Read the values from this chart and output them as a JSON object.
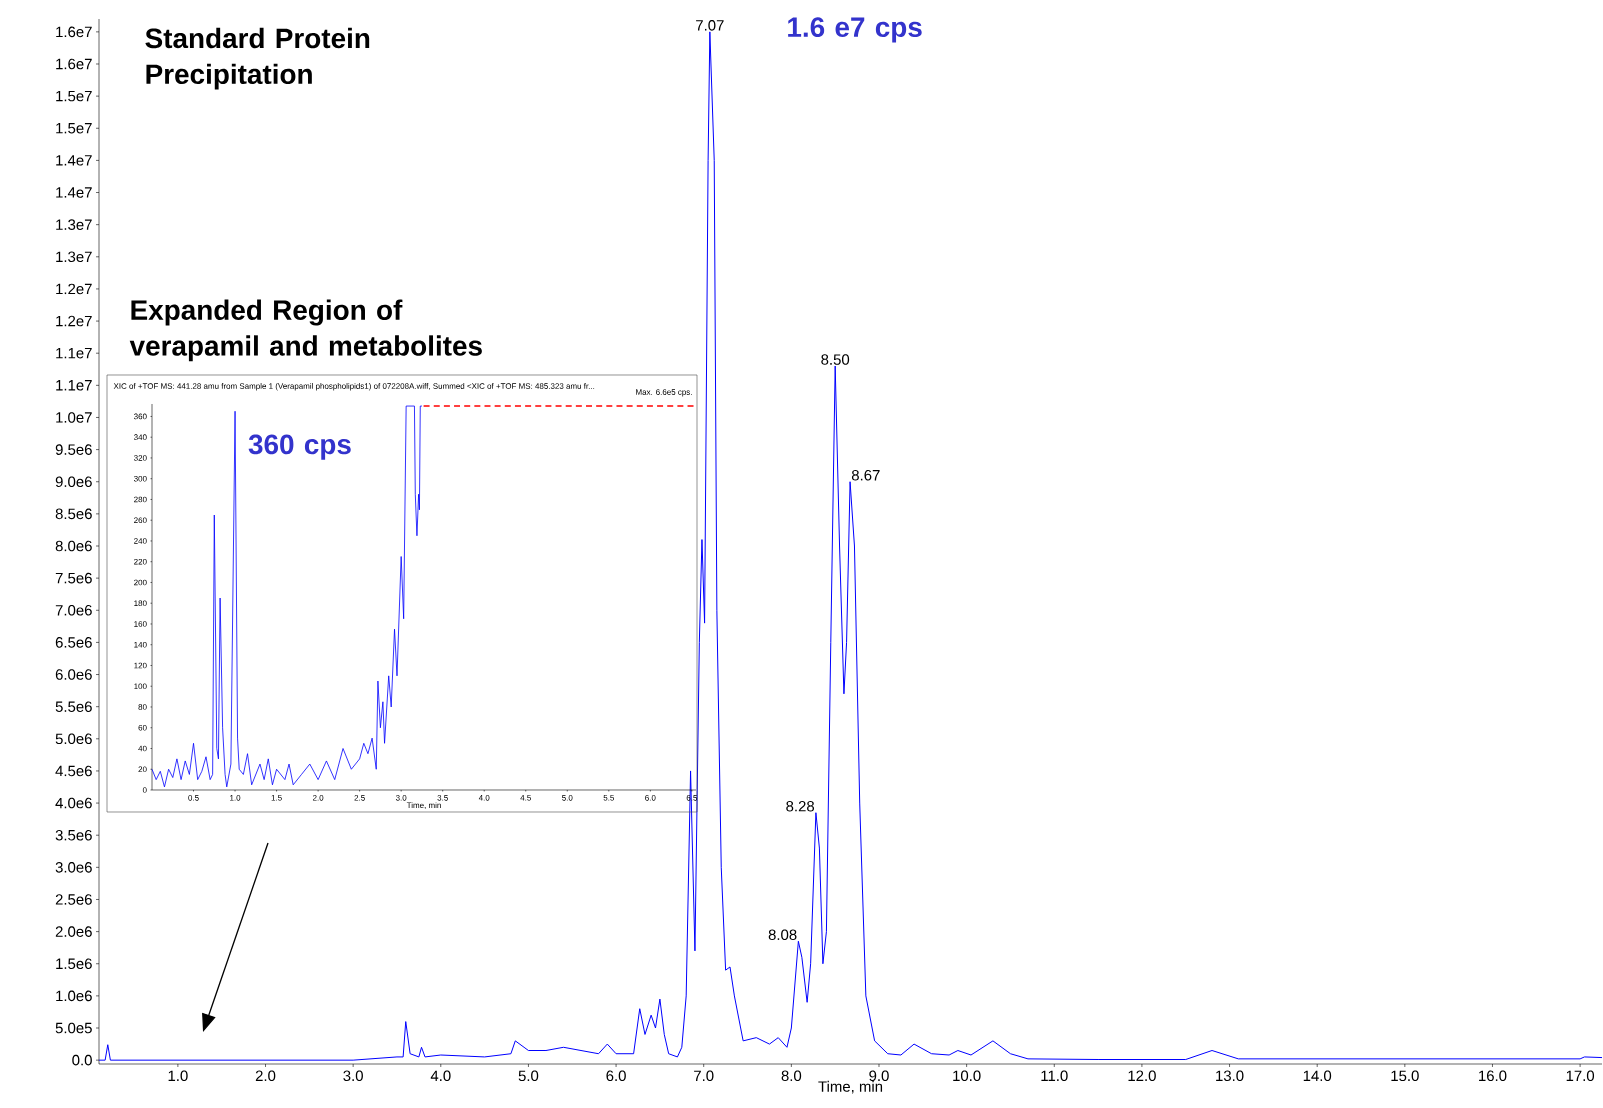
{
  "chart_data": [
    {
      "type": "line",
      "xlabel": "Time, min",
      "annotations": [
        "Standard Protein Precipitation",
        "Expanded Region of verapamil and metabolites",
        "1.6 e7 cps",
        {
          "text": "7.07",
          "x": 7.07,
          "y": 16000000
        },
        {
          "text": "8.50",
          "x": 8.5,
          "y": 10800000
        },
        {
          "text": "8.67",
          "x": 8.67,
          "y": 9000000
        },
        {
          "text": "8.28",
          "x": 8.28,
          "y": 3850000
        },
        {
          "text": "8.08",
          "x": 8.08,
          "y": 1850000
        }
      ],
      "xlim": [
        0.1,
        17.25
      ],
      "xticks": [
        {
          "value": 1,
          "label": "1.0"
        },
        {
          "value": 2,
          "label": "2.0"
        },
        {
          "value": 3,
          "label": "3.0"
        },
        {
          "value": 4,
          "label": "4.0"
        },
        {
          "value": 5,
          "label": "5.0"
        },
        {
          "value": 6,
          "label": "6.0"
        },
        {
          "value": 7,
          "label": "7.0"
        },
        {
          "value": 8,
          "label": "8.0"
        },
        {
          "value": 9,
          "label": "9.0"
        },
        {
          "value": 10,
          "label": "10.0"
        },
        {
          "value": 11,
          "label": "11.0"
        },
        {
          "value": 12,
          "label": "12.0"
        },
        {
          "value": 13,
          "label": "13.0"
        },
        {
          "value": 14,
          "label": "14.0"
        },
        {
          "value": 15,
          "label": "15.0"
        },
        {
          "value": 16,
          "label": "16.0"
        },
        {
          "value": 17,
          "label": "17.0"
        }
      ],
      "ylim": [
        -60000,
        16200000
      ],
      "yticks": [
        {
          "value": 0,
          "label": "0.0"
        },
        {
          "value": 500000,
          "label": "5.0e5"
        },
        {
          "value": 1000000,
          "label": "1.0e6"
        },
        {
          "value": 1500000,
          "label": "1.5e6"
        },
        {
          "value": 2000000,
          "label": "2.0e6"
        },
        {
          "value": 2500000,
          "label": "2.5e6"
        },
        {
          "value": 3000000,
          "label": "3.0e6"
        },
        {
          "value": 3500000,
          "label": "3.5e6"
        },
        {
          "value": 4000000,
          "label": "4.0e6"
        },
        {
          "value": 4500000,
          "label": "4.5e6"
        },
        {
          "value": 5000000,
          "label": "5.0e6"
        },
        {
          "value": 5500000,
          "label": "5.5e6"
        },
        {
          "value": 6000000,
          "label": "6.0e6"
        },
        {
          "value": 6500000,
          "label": "6.5e6"
        },
        {
          "value": 7000000,
          "label": "7.0e6"
        },
        {
          "value": 7500000,
          "label": "7.5e6"
        },
        {
          "value": 8000000,
          "label": "8.0e6"
        },
        {
          "value": 8500000,
          "label": "8.5e6"
        },
        {
          "value": 9000000,
          "label": "9.0e6"
        },
        {
          "value": 9500000,
          "label": "9.5e6"
        },
        {
          "value": 10000000,
          "label": "1.0e7"
        },
        {
          "value": 10500000,
          "label": "1.1e7"
        },
        {
          "value": 11000000,
          "label": "1.1e7"
        },
        {
          "value": 11500000,
          "label": "1.2e7"
        },
        {
          "value": 12000000,
          "label": "1.2e7"
        },
        {
          "value": 12500000,
          "label": "1.3e7"
        },
        {
          "value": 13000000,
          "label": "1.3e7"
        },
        {
          "value": 13500000,
          "label": "1.4e7"
        },
        {
          "value": 14000000,
          "label": "1.4e7"
        },
        {
          "value": 14500000,
          "label": "1.5e7"
        },
        {
          "value": 15000000,
          "label": "1.5e7"
        },
        {
          "value": 15500000,
          "label": "1.6e7"
        },
        {
          "value": 16000000,
          "label": "1.6e7"
        }
      ],
      "series": [
        {
          "color": "#0000ff",
          "x": [
            0.1,
            0.17,
            0.2,
            0.23,
            0.3,
            3.0,
            3.5,
            3.57,
            3.6,
            3.65,
            3.75,
            3.78,
            3.82,
            4.0,
            4.5,
            4.8,
            4.85,
            4.95,
            5.0,
            5.2,
            5.4,
            5.6,
            5.8,
            5.9,
            6.0,
            6.2,
            6.27,
            6.33,
            6.4,
            6.45,
            6.5,
            6.55,
            6.6,
            6.7,
            6.75,
            6.8,
            6.85,
            6.9,
            6.95,
            6.98,
            7.01,
            7.05,
            7.07,
            7.12,
            7.15,
            7.2,
            7.25,
            7.3,
            7.35,
            7.45,
            7.6,
            7.75,
            7.85,
            7.95,
            8.0,
            8.08,
            8.12,
            8.18,
            8.22,
            8.28,
            8.32,
            8.36,
            8.4,
            8.45,
            8.5,
            8.55,
            8.6,
            8.63,
            8.67,
            8.72,
            8.78,
            8.85,
            8.95,
            9.1,
            9.25,
            9.4,
            9.6,
            9.8,
            9.9,
            10.05,
            10.3,
            10.5,
            10.7,
            11.5,
            12.5,
            12.8,
            13.1,
            17.0,
            17.05,
            17.25
          ],
          "values": [
            0,
            0,
            240000,
            0,
            0,
            0,
            50000,
            50000,
            600000,
            100000,
            50000,
            200000,
            50000,
            80000,
            50000,
            100000,
            300000,
            200000,
            150000,
            150000,
            200000,
            150000,
            100000,
            250000,
            100000,
            100000,
            800000,
            400000,
            700000,
            500000,
            950000,
            400000,
            100000,
            50000,
            200000,
            1000000,
            4500000,
            1700000,
            6500000,
            8100000,
            6800000,
            14000000,
            16000000,
            14000000,
            7000000,
            3000000,
            1400000,
            1450000,
            1000000,
            300000,
            350000,
            250000,
            350000,
            200000,
            500000,
            1850000,
            1600000,
            900000,
            1500000,
            3850000,
            3300000,
            1500000,
            2000000,
            6500000,
            10800000,
            8000000,
            5700000,
            6500000,
            9000000,
            8000000,
            4000000,
            1000000,
            300000,
            100000,
            80000,
            250000,
            100000,
            80000,
            150000,
            80000,
            300000,
            100000,
            20000,
            10000,
            10000,
            150000,
            20000,
            20000,
            50000,
            40000
          ]
        }
      ]
    },
    {
      "type": "line",
      "title": "XIC of +TOF MS: 441.28 amu from Sample 1 (Verapamil phospholipids1) of 072208A.wiff, Summed <XIC of +TOF MS: 485.323 amu fr...",
      "subtitle": "Max. 6.6e5 cps.",
      "xlabel": "Time, min",
      "annotations": [
        "360 cps"
      ],
      "xlim": [
        0,
        6.55
      ],
      "xticks": [
        0.5,
        {
          "value": 1,
          "label": "1.0"
        },
        1.5,
        {
          "value": 2,
          "label": "2.0"
        },
        2.5,
        {
          "value": 3,
          "label": "3.0"
        },
        3.5,
        {
          "value": 4,
          "label": "4.0"
        },
        4.5,
        {
          "value": 5,
          "label": "5.0"
        },
        5.5,
        {
          "value": 6,
          "label": "6.0"
        },
        6.5
      ],
      "ylim": [
        0,
        372
      ],
      "yticks": [
        0,
        20,
        40,
        60,
        80,
        100,
        120,
        140,
        160,
        180,
        200,
        220,
        240,
        260,
        280,
        300,
        320,
        340,
        360
      ],
      "series": [
        {
          "color": "#0000ff",
          "x": [
            0.0,
            0.05,
            0.1,
            0.15,
            0.2,
            0.25,
            0.3,
            0.35,
            0.4,
            0.45,
            0.5,
            0.55,
            0.6,
            0.65,
            0.7,
            0.73,
            0.75,
            0.78,
            0.8,
            0.82,
            0.85,
            0.88,
            0.9,
            0.95,
            1.0,
            1.03,
            1.05,
            1.1,
            1.15,
            1.2,
            1.3,
            1.35,
            1.4,
            1.45,
            1.5,
            1.6,
            1.65,
            1.7,
            1.8,
            1.9,
            2.0,
            2.1,
            2.2,
            2.3,
            2.4,
            2.5,
            2.55,
            2.6,
            2.65,
            2.7,
            2.72,
            2.75,
            2.78,
            2.8,
            2.85,
            2.88,
            2.92,
            2.95,
            3.0,
            3.03,
            3.06,
            3.16,
            3.17,
            3.19,
            3.21,
            3.22,
            3.23,
            3.25
          ],
          "values": [
            20,
            10,
            18,
            3,
            20,
            12,
            30,
            10,
            28,
            15,
            45,
            10,
            18,
            32,
            10,
            15,
            265,
            40,
            30,
            185,
            60,
            15,
            3,
            25,
            365,
            50,
            20,
            15,
            35,
            5,
            25,
            10,
            30,
            5,
            20,
            10,
            25,
            5,
            15,
            25,
            10,
            28,
            10,
            40,
            20,
            30,
            45,
            35,
            50,
            20,
            105,
            60,
            85,
            45,
            110,
            80,
            155,
            110,
            225,
            165,
            370,
            370,
            285,
            245,
            285,
            270,
            370,
            370
          ]
        },
        {
          "color": "#ff0000",
          "line_style": "dashed",
          "x": [
            3.27,
            6.52
          ],
          "values": [
            370,
            370
          ]
        }
      ]
    }
  ]
}
